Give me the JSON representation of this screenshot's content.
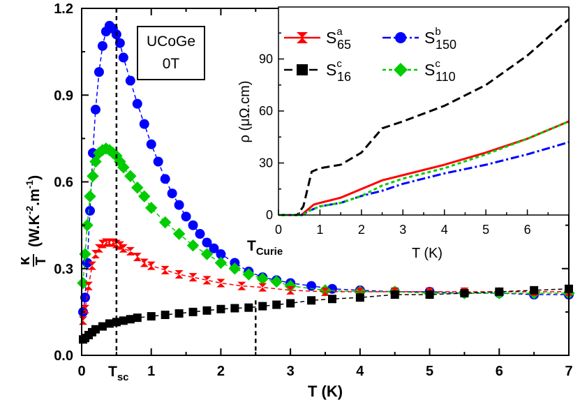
{
  "chart_data": [
    {
      "type": "scatter",
      "xlabel": "T (K)",
      "ylabel": "κ/T (W.K-2.m-1)",
      "ylabel_parts": {
        "kappa": "κ",
        "over": "T",
        "units_prefix": "(W.K",
        "exp1": "-2",
        "mid": ".m",
        "exp2": "-1",
        "suffix": ")"
      },
      "xlim": [
        0,
        7
      ],
      "ylim": [
        0,
        1.2
      ],
      "x_ticks": [
        0,
        1,
        2,
        3,
        4,
        5,
        6,
        7
      ],
      "x_tick_labels": [
        "0",
        "1",
        "2",
        "3",
        "4",
        "5",
        "6",
        "7"
      ],
      "y_ticks": [
        0,
        0.3,
        0.6,
        0.9,
        1.2
      ],
      "y_tick_labels": [
        "0.0",
        "0.3",
        "0.6",
        "0.9",
        "1.2"
      ],
      "label_box": [
        "UCoGe",
        "0T"
      ],
      "markers": [
        {
          "name": "Tsc",
          "x": 0.5,
          "label": "T",
          "sub": "sc"
        },
        {
          "name": "TCurie",
          "x": 2.5,
          "label": "T",
          "sub": "Curie"
        }
      ],
      "series": [
        {
          "marker": "circle",
          "color": "#0000ff",
          "x": [
            0.02,
            0.05,
            0.08,
            0.12,
            0.16,
            0.2,
            0.25,
            0.3,
            0.35,
            0.4,
            0.45,
            0.5,
            0.55,
            0.6,
            0.7,
            0.8,
            0.9,
            1.0,
            1.1,
            1.2,
            1.3,
            1.4,
            1.5,
            1.6,
            1.7,
            1.8,
            1.9,
            2.0,
            2.2,
            2.4,
            2.6,
            2.8,
            3.0,
            3.3,
            3.6,
            4.0,
            4.5,
            5.0,
            5.5,
            6.0,
            6.5,
            7.0
          ],
          "y": [
            0.15,
            0.2,
            0.32,
            0.5,
            0.7,
            0.85,
            0.98,
            1.07,
            1.12,
            1.14,
            1.13,
            1.11,
            1.08,
            1.03,
            0.95,
            0.87,
            0.8,
            0.73,
            0.67,
            0.61,
            0.56,
            0.52,
            0.48,
            0.45,
            0.42,
            0.39,
            0.37,
            0.35,
            0.32,
            0.29,
            0.27,
            0.26,
            0.25,
            0.24,
            0.23,
            0.225,
            0.22,
            0.22,
            0.215,
            0.215,
            0.21,
            0.21
          ]
        },
        {
          "marker": "diamond",
          "color": "#00cc00",
          "x": [
            0.02,
            0.05,
            0.08,
            0.12,
            0.16,
            0.2,
            0.25,
            0.3,
            0.35,
            0.4,
            0.45,
            0.5,
            0.55,
            0.6,
            0.7,
            0.8,
            0.9,
            1.0,
            1.2,
            1.4,
            1.6,
            1.8,
            2.0,
            2.2,
            2.4,
            2.6,
            2.8,
            3.0,
            3.5,
            4.0,
            4.5,
            5.0,
            5.5,
            6.0,
            6.5,
            7.0
          ],
          "y": [
            0.25,
            0.35,
            0.45,
            0.55,
            0.62,
            0.67,
            0.7,
            0.71,
            0.715,
            0.71,
            0.7,
            0.69,
            0.67,
            0.65,
            0.62,
            0.58,
            0.55,
            0.51,
            0.46,
            0.42,
            0.38,
            0.35,
            0.32,
            0.3,
            0.28,
            0.265,
            0.255,
            0.24,
            0.225,
            0.22,
            0.22,
            0.215,
            0.215,
            0.215,
            0.215,
            0.215
          ]
        },
        {
          "marker": "hourglass",
          "color": "#ff0000",
          "x": [
            0.02,
            0.05,
            0.1,
            0.15,
            0.2,
            0.25,
            0.3,
            0.35,
            0.4,
            0.45,
            0.5,
            0.55,
            0.6,
            0.7,
            0.8,
            0.9,
            1.0,
            1.2,
            1.4,
            1.6,
            1.8,
            2.0,
            2.3,
            2.6,
            3.0,
            3.5,
            4.0,
            4.5,
            5.0,
            5.5,
            6.0,
            6.5,
            7.0
          ],
          "y": [
            0.12,
            0.16,
            0.24,
            0.31,
            0.35,
            0.37,
            0.385,
            0.39,
            0.39,
            0.39,
            0.385,
            0.38,
            0.37,
            0.36,
            0.34,
            0.32,
            0.31,
            0.295,
            0.28,
            0.27,
            0.26,
            0.25,
            0.24,
            0.235,
            0.225,
            0.22,
            0.22,
            0.22,
            0.22,
            0.22,
            0.22,
            0.22,
            0.22
          ]
        },
        {
          "marker": "square",
          "color": "#000000",
          "x": [
            0.02,
            0.05,
            0.1,
            0.15,
            0.2,
            0.3,
            0.4,
            0.5,
            0.6,
            0.7,
            0.8,
            1.0,
            1.2,
            1.4,
            1.6,
            1.8,
            2.0,
            2.2,
            2.4,
            2.6,
            2.8,
            3.0,
            3.3,
            3.6,
            4.0,
            4.5,
            5.0,
            5.5,
            6.0,
            6.5,
            7.0
          ],
          "y": [
            0.055,
            0.06,
            0.07,
            0.08,
            0.09,
            0.1,
            0.11,
            0.115,
            0.12,
            0.125,
            0.13,
            0.135,
            0.14,
            0.145,
            0.15,
            0.155,
            0.16,
            0.163,
            0.165,
            0.17,
            0.175,
            0.18,
            0.19,
            0.195,
            0.2,
            0.21,
            0.21,
            0.215,
            0.22,
            0.225,
            0.23
          ]
        }
      ]
    },
    {
      "type": "line",
      "xlabel": "T (K)",
      "ylabel": "ρ (μΩ.cm)",
      "xlim": [
        0,
        7
      ],
      "ylim": [
        0,
        120
      ],
      "x_ticks": [
        0,
        1,
        2,
        3,
        4,
        5,
        6
      ],
      "x_tick_labels": [
        "0",
        "1",
        "2",
        "3",
        "4",
        "5",
        "6"
      ],
      "y_ticks": [
        0,
        30,
        60,
        90
      ],
      "y_tick_labels": [
        "0",
        "30",
        "60",
        "90"
      ],
      "series": [
        {
          "name": "S65a",
          "label": "S",
          "sup": "a",
          "sub": "65",
          "color": "#ff0000",
          "dash": "",
          "marker": "hourglass",
          "x": [
            0,
            0.55,
            0.65,
            0.85,
            1.0,
            1.5,
            2.0,
            2.5,
            3.0,
            4.0,
            5.0,
            6.0,
            7.0
          ],
          "y": [
            0,
            0,
            2,
            6,
            7,
            10,
            15,
            20,
            23,
            29,
            36,
            44,
            54
          ]
        },
        {
          "name": "S150b",
          "label": "S",
          "sup": "b",
          "sub": "150",
          "color": "#0000ff",
          "dash": "12,4,3,4",
          "marker": "circle",
          "x": [
            0,
            0.6,
            0.7,
            1.0,
            1.5,
            2.0,
            2.5,
            3.0,
            4.0,
            5.0,
            6.0,
            7.0
          ],
          "y": [
            0,
            0,
            2,
            5,
            7,
            11,
            14,
            18,
            24,
            29,
            35,
            42
          ]
        },
        {
          "name": "S16c",
          "label": "S",
          "sup": "c",
          "sub": "16",
          "color": "#000000",
          "dash": "12,6",
          "marker": "square",
          "x": [
            0,
            0.45,
            0.6,
            0.8,
            1.0,
            1.5,
            2.0,
            2.5,
            3.0,
            4.0,
            5.0,
            6.0,
            7.0
          ],
          "y": [
            0,
            0,
            5,
            25,
            27,
            29,
            36,
            50,
            54,
            63,
            75,
            92,
            113
          ]
        },
        {
          "name": "S110c",
          "label": "S",
          "sup": "c",
          "sub": "110",
          "color": "#00cc00",
          "dash": "5,4",
          "marker": "diamond",
          "x": [
            0,
            0.6,
            0.7,
            1.0,
            1.5,
            2.0,
            2.5,
            3.0,
            4.0,
            5.0,
            6.0,
            7.0
          ],
          "y": [
            0,
            0,
            2,
            5,
            7,
            11,
            17,
            21,
            27,
            35,
            44,
            54
          ]
        }
      ]
    }
  ]
}
